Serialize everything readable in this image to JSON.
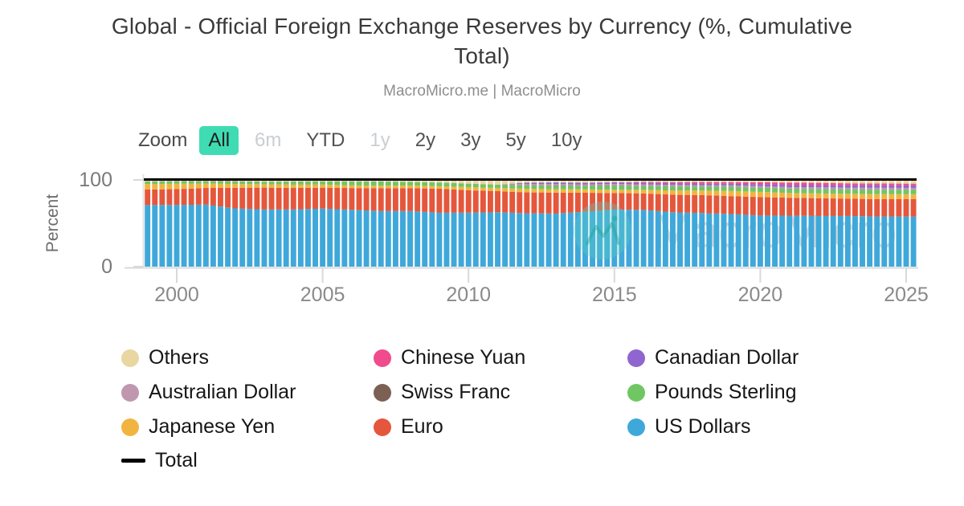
{
  "header": {
    "title": "Global - Official Foreign Exchange Reserves by Currency (%, Cumulative Total)",
    "subtitle": "MacroMicro.me | MacroMicro"
  },
  "zoom_controls": {
    "label": "Zoom",
    "buttons": [
      {
        "label": "All",
        "state": "active"
      },
      {
        "label": "6m",
        "state": "disabled"
      },
      {
        "label": "YTD",
        "state": "normal"
      },
      {
        "label": "1y",
        "state": "disabled"
      },
      {
        "label": "2y",
        "state": "normal"
      },
      {
        "label": "3y",
        "state": "normal"
      },
      {
        "label": "5y",
        "state": "normal"
      },
      {
        "label": "10y",
        "state": "normal"
      }
    ],
    "active_color": "#3fdcb4"
  },
  "y_axis": {
    "label": "Percent",
    "ticks": [
      "100",
      "0"
    ]
  },
  "x_axis": {
    "ticks": [
      "2000",
      "2005",
      "2010",
      "2015",
      "2020",
      "2025"
    ]
  },
  "watermark": {
    "text": "MacroMicro",
    "logo": "macromicro-mountain-logo",
    "color": "#d9d9d9",
    "logo_color": "#5fd0c6"
  },
  "legend": {
    "items": [
      {
        "label": "Others",
        "color": "#e9d6a0",
        "swatch": "dot"
      },
      {
        "label": "Chinese Yuan",
        "color": "#ef4b8d",
        "swatch": "dot"
      },
      {
        "label": "Canadian Dollar",
        "color": "#9065d0",
        "swatch": "dot"
      },
      {
        "label": "Australian Dollar",
        "color": "#bf97af",
        "swatch": "dot"
      },
      {
        "label": "Swiss Franc",
        "color": "#7c6054",
        "swatch": "dot"
      },
      {
        "label": "Pounds Sterling",
        "color": "#70c662",
        "swatch": "dot"
      },
      {
        "label": "Japanese Yen",
        "color": "#f2b440",
        "swatch": "dot"
      },
      {
        "label": "Euro",
        "color": "#e4573c",
        "swatch": "dot"
      },
      {
        "label": "US Dollars",
        "color": "#3fa8da",
        "swatch": "dot"
      },
      {
        "label": "Total",
        "color": "#000000",
        "swatch": "line"
      }
    ]
  },
  "chart_data": {
    "type": "bar",
    "variant": "percent-stacked-column, quarterly bars",
    "title": "Global - Official Foreign Exchange Reserves by Currency (%, Cumulative Total)",
    "xlabel": "",
    "ylabel": "Percent",
    "ylim": [
      0,
      105
    ],
    "y_ticks": [
      0,
      100
    ],
    "x_range_years": [
      1999.0,
      2025.25
    ],
    "bar_interval_years": 0.25,
    "x_ticks": [
      2000,
      2005,
      2010,
      2015,
      2020,
      2025
    ],
    "grid": false,
    "legend_position": "bottom",
    "anchor_years": [
      1999,
      2000,
      2001,
      2002,
      2003,
      2004,
      2005,
      2006,
      2007,
      2008,
      2009,
      2010,
      2011,
      2012,
      2013,
      2014,
      2015,
      2016,
      2017,
      2018,
      2019,
      2020,
      2021,
      2022,
      2023,
      2024,
      2025
    ],
    "stack_order": "bottom_to_top",
    "series": [
      {
        "name": "US Dollars",
        "color": "#3fa8da",
        "values": [
          71.0,
          71.1,
          71.5,
          67.1,
          65.9,
          65.9,
          66.9,
          65.5,
          64.1,
          64.1,
          62.1,
          62.2,
          62.7,
          61.5,
          61.2,
          63.3,
          65.7,
          65.4,
          62.7,
          61.8,
          60.7,
          58.9,
          58.8,
          58.4,
          58.4,
          57.8,
          57.7
        ]
      },
      {
        "name": "Euro",
        "color": "#e4573c",
        "values": [
          17.9,
          18.3,
          19.2,
          23.8,
          25.2,
          24.8,
          24.1,
          25.1,
          26.3,
          26.4,
          27.7,
          25.8,
          24.4,
          24.1,
          24.2,
          21.9,
          19.1,
          19.1,
          20.2,
          20.7,
          20.6,
          21.3,
          20.6,
          20.5,
          20.0,
          20.0,
          20.1
        ]
      },
      {
        "name": "Japanese Yen",
        "color": "#f2b440",
        "values": [
          6.4,
          6.1,
          5.0,
          4.4,
          3.9,
          3.8,
          3.6,
          3.1,
          2.9,
          3.1,
          2.9,
          3.7,
          3.6,
          4.1,
          3.8,
          3.9,
          3.8,
          4.0,
          4.9,
          5.2,
          5.9,
          6.0,
          5.5,
          5.5,
          5.7,
          5.8,
          5.7
        ]
      },
      {
        "name": "Pounds Sterling",
        "color": "#70c662",
        "values": [
          2.9,
          2.8,
          2.7,
          2.8,
          2.8,
          3.4,
          3.6,
          4.4,
          4.7,
          4.0,
          4.2,
          3.9,
          3.8,
          4.0,
          4.0,
          3.8,
          4.7,
          4.3,
          4.5,
          4.4,
          4.6,
          4.7,
          4.8,
          4.9,
          4.8,
          4.9,
          5.0
        ]
      },
      {
        "name": "Swiss Franc",
        "color": "#7c6054",
        "values": [
          0.2,
          0.3,
          0.3,
          0.4,
          0.2,
          0.2,
          0.1,
          0.2,
          0.2,
          0.1,
          0.1,
          0.1,
          0.1,
          0.2,
          0.3,
          0.3,
          0.3,
          0.2,
          0.2,
          0.2,
          0.2,
          0.2,
          0.2,
          0.2,
          0.2,
          0.2,
          0.2
        ]
      },
      {
        "name": "Australian Dollar",
        "color": "#bf97af",
        "values": [
          0,
          0,
          0,
          0,
          0,
          0,
          0,
          0,
          0,
          0,
          0,
          0,
          0,
          1.5,
          1.8,
          1.6,
          1.8,
          1.7,
          1.8,
          1.6,
          1.7,
          1.8,
          1.8,
          2.0,
          2.1,
          2.2,
          2.1
        ]
      },
      {
        "name": "Canadian Dollar",
        "color": "#9065d0",
        "values": [
          0,
          0,
          0,
          0,
          0,
          0,
          0,
          0,
          0,
          0,
          0,
          0,
          0,
          1.4,
          1.8,
          1.9,
          1.8,
          1.9,
          2.0,
          1.8,
          1.9,
          2.1,
          2.4,
          2.4,
          2.6,
          2.8,
          2.8
        ]
      },
      {
        "name": "Chinese Yuan",
        "color": "#ef4b8d",
        "values": [
          0,
          0,
          0,
          0,
          0,
          0,
          0,
          0,
          0,
          0,
          0,
          0,
          0,
          0,
          0,
          0,
          0,
          1.1,
          1.2,
          1.9,
          1.9,
          2.3,
          2.8,
          2.7,
          2.3,
          2.2,
          2.1
        ]
      },
      {
        "name": "Others",
        "color": "#e9d6a0",
        "values": [
          1.6,
          1.4,
          1.3,
          1.5,
          2.0,
          1.9,
          1.7,
          1.7,
          1.8,
          2.3,
          3.0,
          4.3,
          5.4,
          3.2,
          2.9,
          3.3,
          2.8,
          2.3,
          2.5,
          2.4,
          2.5,
          2.7,
          3.1,
          3.4,
          3.9,
          4.1,
          4.3
        ]
      }
    ],
    "total_line": {
      "name": "Total",
      "color": "#000000",
      "value": 100
    }
  }
}
